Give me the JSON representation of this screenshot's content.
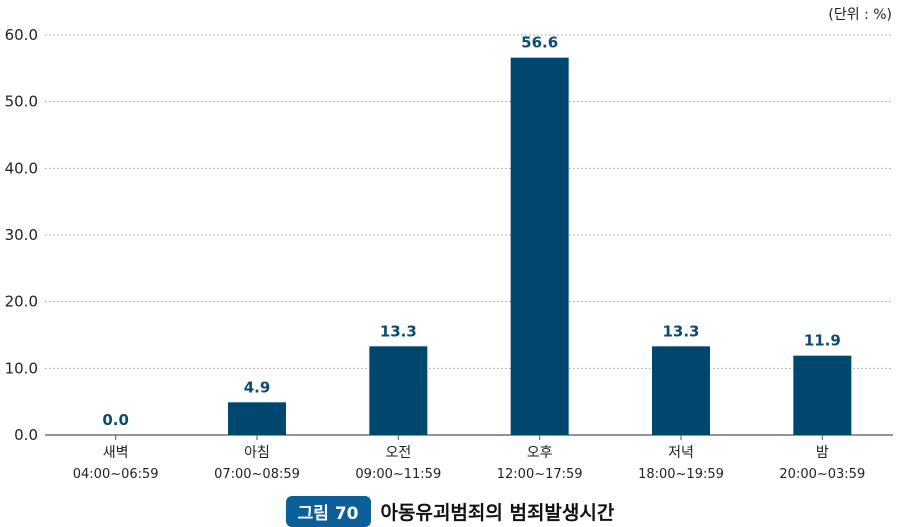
{
  "unit_note": "(단위 : %)",
  "caption": {
    "badge": "그림 70",
    "title": "아동유괴범죄의 범죄발생시간"
  },
  "chart_data": {
    "type": "bar",
    "categories": [
      {
        "name": "새벽",
        "range": "04:00~06:59"
      },
      {
        "name": "아침",
        "range": "07:00~08:59"
      },
      {
        "name": "오전",
        "range": "09:00~11:59"
      },
      {
        "name": "오후",
        "range": "12:00~17:59"
      },
      {
        "name": "저녁",
        "range": "18:00~19:59"
      },
      {
        "name": "밤",
        "range": "20:00~03:59"
      }
    ],
    "values": [
      0.0,
      4.9,
      13.3,
      56.6,
      13.3,
      11.9
    ],
    "value_labels": [
      "0.0",
      "4.9",
      "13.3",
      "56.6",
      "13.3",
      "11.9"
    ],
    "ylim": [
      0,
      60
    ],
    "yticks": [
      "0.0",
      "10.0",
      "20.0",
      "30.0",
      "40.0",
      "50.0",
      "60.0"
    ],
    "grid": "dotted-horizontal",
    "bar_color": "#004770",
    "label_color": "#0d4a70"
  }
}
